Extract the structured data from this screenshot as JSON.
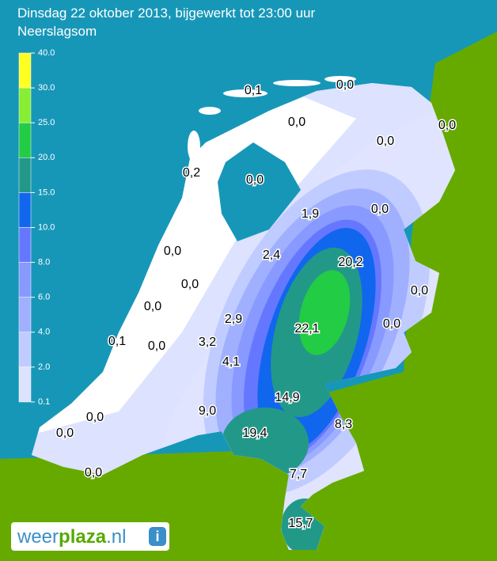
{
  "header": {
    "line1": "Dinsdag 22 oktober 2013, bijgewerkt tot 23:00 uur",
    "line2": "Neerslagsom"
  },
  "legend": {
    "labels": [
      "40.0",
      "30.0",
      "25.0",
      "20.0",
      "15.0",
      "10.0",
      "8.0",
      "6.0",
      "4.0",
      "2.0",
      "0.1"
    ],
    "colors": [
      "#ffff22",
      "#88ee33",
      "#22cc44",
      "#229988",
      "#1166ee",
      "#6677ff",
      "#8899ff",
      "#a0b0ff",
      "#c0ccff",
      "#dde2ff"
    ]
  },
  "map": {
    "labels": [
      "0,1",
      "0,0",
      "0,0",
      "0,0",
      "0,0",
      "0,2",
      "0,0",
      "1,9",
      "0,0",
      "0,0",
      "2,4",
      "20,2",
      "0,0",
      "0,0",
      "0,0",
      "2,9",
      "22,1",
      "0,0",
      "0,1",
      "0,0",
      "3,2",
      "4,1",
      "14,9",
      "9,0",
      "8,3",
      "0,0",
      "0,0",
      "19,4",
      "0,0",
      "7,7",
      "15,7"
    ]
  },
  "logo": {
    "part1": "weer",
    "part2": "plaza",
    "part3": ".nl",
    "icon": "i"
  }
}
